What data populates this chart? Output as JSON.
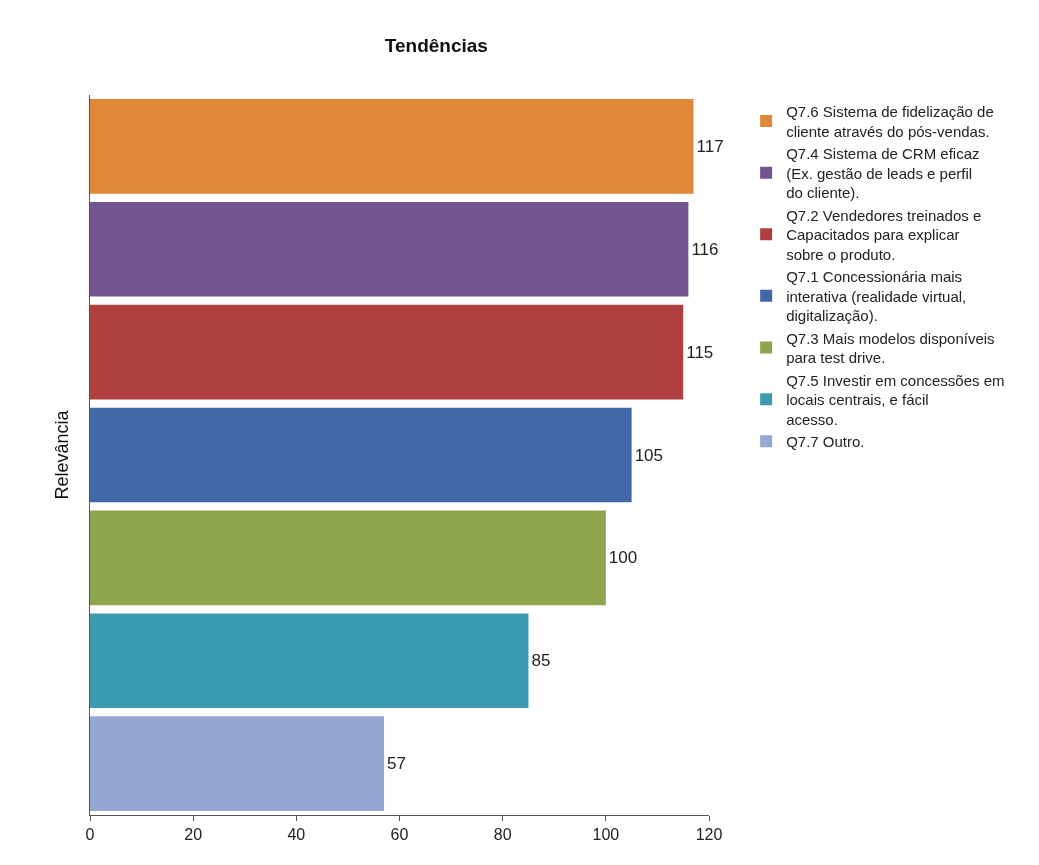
{
  "chart_data": {
    "type": "bar",
    "title": "Tendências",
    "ylabel": "Relevância",
    "orientation": "horizontal",
    "categories": [
      null,
      null,
      null,
      null,
      null,
      null,
      null
    ],
    "series": [
      {
        "name": "Q7.6 Sistema de fidelização de cliente através do pós-vendas.",
        "color": "#e0883a",
        "values": [
          117,
          null,
          null,
          null,
          null,
          null,
          null
        ]
      },
      {
        "name": "Q7.4 Sistema de CRM eficaz (Ex. gestão de leads e perfil do cliente).",
        "color": "#72548f",
        "values": [
          null,
          116,
          null,
          null,
          null,
          null,
          null
        ]
      },
      {
        "name": "Q7.2 Vendedores treinados e Capacitados para explicar sobre o produto.",
        "color": "#b0403f",
        "values": [
          null,
          null,
          115,
          null,
          null,
          null,
          null
        ]
      },
      {
        "name": "Q7.1 Concessionária mais interativa (realidade virtual, digitalização).",
        "color": "#4169a8",
        "values": [
          null,
          null,
          null,
          105,
          null,
          null,
          null
        ]
      },
      {
        "name": "Q7.3 Mais modelos disponíveis para test drive.",
        "color": "#8ea54d",
        "values": [
          null,
          null,
          null,
          null,
          100,
          null,
          null
        ]
      },
      {
        "name": "Q7.5 Investir em concessões em locais centrais, e fácil acesso.",
        "color": "#3c9bb0",
        "values": [
          null,
          null,
          null,
          null,
          null,
          85,
          null
        ]
      },
      {
        "name": "Q7.7 Outro.",
        "color": "#95a8d4",
        "values": [
          null,
          null,
          null,
          null,
          null,
          null,
          57
        ]
      }
    ],
    "xlim": [
      0,
      120
    ],
    "xticks": [
      0,
      20,
      40,
      60,
      80,
      100,
      120
    ],
    "data_labels": true,
    "legend": "right",
    "tick_labels": "x"
  }
}
